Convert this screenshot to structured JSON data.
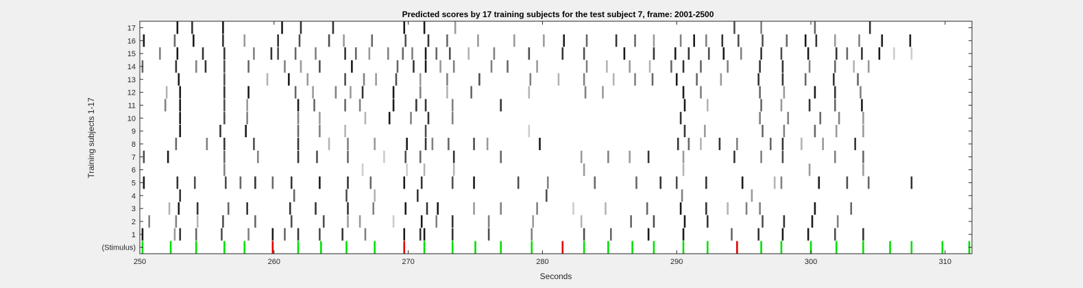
{
  "chart_data": {
    "type": "heatmap",
    "title": "Predicted scores by 17 training subjects for the test subject 7, frame: 2001-2500",
    "xlabel": "Seconds",
    "ylabel": "Training subjects 1-17",
    "xlim": [
      250,
      312
    ],
    "x_ticks": [
      250,
      260,
      270,
      280,
      290,
      300,
      310
    ],
    "y_tick_labels": [
      "(Stimulus)",
      "1",
      "2",
      "3",
      "4",
      "5",
      "6",
      "7",
      "8",
      "9",
      "10",
      "11",
      "12",
      "13",
      "14",
      "15",
      "16",
      "17"
    ],
    "grid": false,
    "colors": {
      "stimulus_normal": "#00e000",
      "stimulus_odd": "#e00000",
      "axes": "#000000",
      "background": "#f0f0f0"
    },
    "stimulus": {
      "normal_times": [
        250.2,
        252.3,
        254.2,
        256.3,
        257.8,
        261.8,
        263.5,
        265.4,
        267.5,
        271.2,
        273.3,
        275.0,
        276.9,
        279.2,
        283.1,
        284.9,
        286.7,
        288.3,
        290.5,
        292.3,
        296.3,
        297.8,
        300.0,
        301.9,
        303.9,
        305.9,
        307.5,
        309.8,
        311.8
      ],
      "odd_times": [
        259.9,
        269.7,
        281.5,
        294.5
      ]
    },
    "series": [
      {
        "row": 1,
        "times": [
          250.2,
          252.6,
          253.0,
          254.2,
          256.1,
          258.1,
          259.9,
          260.8,
          261.8,
          263.4,
          265.1,
          266.8,
          269.7,
          270.9,
          271.2,
          273.3,
          276.0,
          279.2,
          283.1,
          285.1,
          287.9,
          290.5,
          294.1,
          296.1,
          297.9,
          299.8,
          301.8,
          303.9
        ],
        "intensities": [
          0.9,
          0.4,
          0.8,
          0.6,
          0.7,
          0.5,
          0.9,
          0.6,
          0.8,
          0.7,
          0.8,
          0.5,
          0.9,
          0.8,
          0.9,
          0.8,
          0.7,
          0.5,
          0.7,
          0.6,
          0.9,
          0.9,
          0.6,
          0.8,
          0.9,
          0.9,
          0.7,
          0.8
        ]
      },
      {
        "row": 2,
        "times": [
          250.7,
          252.7,
          254.3,
          256.2,
          258.6,
          261.3,
          263.7,
          265.5,
          266.4,
          268.9,
          271.0,
          272.1,
          273.3,
          276.0,
          279.3,
          282.9,
          286.6,
          288.3,
          290.6,
          292.3,
          296.4,
          298.0,
          300.1,
          302.0
        ],
        "intensities": [
          0.5,
          0.5,
          0.3,
          0.7,
          0.6,
          0.7,
          0.7,
          0.4,
          0.4,
          0.2,
          0.9,
          0.5,
          0.8,
          0.5,
          0.4,
          0.3,
          0.6,
          0.7,
          0.9,
          0.8,
          0.7,
          0.8,
          0.9,
          0.5
        ]
      },
      {
        "row": 3,
        "times": [
          252.2,
          252.9,
          254.3,
          256.6,
          258.0,
          261.2,
          263.1,
          265.5,
          267.4,
          269.8,
          271.4,
          272.2,
          274.9,
          276.9,
          279.6,
          282.3,
          284.7,
          287.8,
          290.3,
          292.2,
          293.8,
          295.2,
          296.2,
          300.3,
          303.0
        ],
        "intensities": [
          0.3,
          0.9,
          0.8,
          0.6,
          0.8,
          0.8,
          0.8,
          0.8,
          0.5,
          0.9,
          0.8,
          0.9,
          0.4,
          0.5,
          0.5,
          0.2,
          0.3,
          0.6,
          0.9,
          0.8,
          0.3,
          0.5,
          0.5,
          0.9,
          0.6
        ]
      },
      {
        "row": 4,
        "times": [
          253.0,
          261.5,
          265.4,
          267.5,
          270.7,
          280.3,
          290.4,
          295.6
        ],
        "intensities": [
          0.8,
          0.6,
          0.7,
          0.3,
          0.8,
          0.7,
          0.5,
          0.4
        ]
      },
      {
        "row": 5,
        "times": [
          250.3,
          252.8,
          254.1,
          256.4,
          257.5,
          258.6,
          259.9,
          261.3,
          263.4,
          265.5,
          267.2,
          269.7,
          271.0,
          273.3,
          274.9,
          278.2,
          280.4,
          283.9,
          287.0,
          288.8,
          290.0,
          292.2,
          294.9,
          297.3,
          297.8,
          300.6,
          302.7,
          304.3,
          307.5
        ],
        "intensities": [
          0.9,
          0.8,
          0.7,
          0.7,
          0.6,
          0.8,
          0.6,
          0.8,
          0.9,
          0.8,
          0.6,
          0.9,
          0.8,
          0.7,
          0.9,
          0.7,
          0.5,
          0.6,
          0.6,
          0.8,
          0.7,
          0.8,
          0.9,
          0.3,
          0.5,
          0.9,
          0.7,
          0.6,
          0.8
        ]
      },
      {
        "row": 6,
        "times": [
          256.3,
          266.6,
          269.9,
          271.2,
          273.4,
          283.1,
          290.5,
          299.9,
          303.9
        ],
        "intensities": [
          0.5,
          0.2,
          0.2,
          0.3,
          0.3,
          0.4,
          0.3,
          0.4,
          0.4
        ]
      },
      {
        "row": 7,
        "times": [
          250.3,
          252.1,
          256.3,
          258.8,
          261.8,
          263.2,
          265.5,
          268.2,
          269.8,
          270.9,
          273.4,
          276.9,
          282.9,
          284.9,
          286.5,
          287.9,
          290.5,
          294.3,
          296.3,
          297.9,
          301.8,
          303.9
        ],
        "intensities": [
          0.7,
          0.9,
          0.6,
          0.5,
          0.8,
          0.7,
          0.6,
          0.2,
          0.7,
          0.6,
          0.8,
          0.6,
          0.4,
          0.5,
          0.4,
          0.8,
          0.4,
          0.8,
          0.5,
          0.7,
          0.5,
          0.6
        ]
      },
      {
        "row": 8,
        "times": [
          252.7,
          255.0,
          256.3,
          258.5,
          261.8,
          264.1,
          265.5,
          267.5,
          269.9,
          271.3,
          271.8,
          273.0,
          274.9,
          275.9,
          279.8,
          290.1,
          290.9,
          291.8,
          293.2,
          294.5,
          297.0,
          297.9,
          299.3,
          300.9,
          303.3
        ],
        "intensities": [
          0.6,
          0.5,
          0.8,
          0.7,
          0.8,
          0.3,
          0.5,
          0.4,
          0.9,
          0.8,
          0.5,
          0.6,
          0.7,
          0.4,
          0.9,
          0.8,
          0.6,
          0.3,
          0.8,
          0.5,
          0.6,
          0.8,
          0.3,
          0.4,
          0.8
        ]
      },
      {
        "row": 9,
        "times": [
          253.0,
          256.0,
          257.9,
          261.8,
          263.4,
          265.3,
          271.3,
          279.0,
          290.6,
          292.1,
          296.4,
          298.0,
          300.3,
          301.9,
          303.9
        ],
        "intensities": [
          0.9,
          0.8,
          0.9,
          0.6,
          0.5,
          0.3,
          0.7,
          0.2,
          0.8,
          0.4,
          0.6,
          0.5,
          0.6,
          0.4,
          0.4
        ]
      },
      {
        "row": 10,
        "times": [
          253.0,
          256.3,
          258.0,
          261.8,
          263.4,
          266.8,
          268.6,
          270.2,
          271.5,
          273.3,
          290.3,
          296.2,
          298.3,
          300.7,
          302.1,
          303.9
        ],
        "intensities": [
          0.9,
          0.7,
          0.5,
          0.5,
          0.4,
          0.3,
          0.9,
          0.5,
          0.8,
          0.5,
          0.8,
          0.5,
          0.5,
          0.6,
          0.5,
          0.4
        ]
      },
      {
        "row": 11,
        "times": [
          251.9,
          253.0,
          256.3,
          258.0,
          261.8,
          263.0,
          265.3,
          266.4,
          268.9,
          270.6,
          271.3,
          273.3,
          276.9,
          290.6,
          292.3,
          296.3,
          297.8,
          299.9,
          301.8,
          303.8
        ],
        "intensities": [
          0.5,
          0.9,
          0.7,
          0.4,
          0.9,
          0.6,
          0.6,
          0.5,
          0.9,
          0.8,
          0.8,
          0.5,
          0.8,
          0.9,
          0.3,
          0.6,
          0.4,
          0.8,
          0.6,
          0.9
        ]
      },
      {
        "row": 12,
        "times": [
          252.0,
          253.0,
          256.3,
          258.1,
          261.6,
          262.9,
          264.6,
          265.7,
          266.6,
          268.9,
          270.9,
          272.9,
          274.7,
          279.0,
          283.2,
          284.5,
          290.5,
          291.8,
          296.2,
          298.0,
          300.3,
          301.8,
          303.7
        ],
        "intensities": [
          0.3,
          0.9,
          0.8,
          0.9,
          0.6,
          0.4,
          0.5,
          0.4,
          0.8,
          0.9,
          0.5,
          0.3,
          0.6,
          0.3,
          0.5,
          0.4,
          0.9,
          0.5,
          0.6,
          0.4,
          0.9,
          0.8,
          0.5
        ]
      },
      {
        "row": 13,
        "times": [
          252.9,
          256.3,
          259.5,
          261.1,
          262.5,
          265.3,
          266.7,
          267.6,
          269.1,
          270.9,
          272.9,
          275.3,
          279.1,
          281.2,
          283.1,
          285.3,
          286.9,
          288.2,
          290.0,
          291.5,
          293.3,
          296.1,
          297.9,
          299.6,
          301.7,
          303.5
        ],
        "intensities": [
          0.9,
          0.7,
          0.3,
          0.9,
          0.4,
          0.7,
          0.5,
          0.4,
          0.7,
          0.4,
          0.5,
          0.7,
          0.5,
          0.3,
          0.5,
          0.3,
          0.5,
          0.6,
          0.9,
          0.6,
          0.4,
          0.8,
          0.8,
          0.6,
          0.8,
          0.6
        ]
      },
      {
        "row": 14,
        "times": [
          250.2,
          252.7,
          254.2,
          254.9,
          256.3,
          258.1,
          260.8,
          262.0,
          263.4,
          265.8,
          269.2,
          270.4,
          271.3,
          272.4,
          273.4,
          276.2,
          277.4,
          279.6,
          283.3,
          284.8,
          286.5,
          288.0,
          289.6,
          290.5,
          291.8,
          293.8,
          296.2,
          297.9,
          299.9,
          301.8,
          303.2,
          304.3
        ],
        "intensities": [
          0.6,
          0.8,
          0.5,
          0.8,
          0.7,
          0.6,
          0.5,
          0.4,
          0.7,
          0.9,
          0.6,
          0.8,
          0.9,
          0.4,
          0.5,
          0.5,
          0.6,
          0.4,
          0.5,
          0.3,
          0.4,
          0.3,
          0.6,
          0.8,
          0.6,
          0.5,
          0.8,
          0.8,
          0.5,
          0.6,
          0.3,
          0.4
        ]
      },
      {
        "row": 15,
        "times": [
          251.5,
          252.8,
          254.7,
          256.3,
          258.5,
          259.8,
          260.3,
          261.6,
          263.1,
          265.3,
          266.1,
          267.1,
          268.5,
          269.6,
          270.3,
          271.3,
          272.1,
          273.1,
          274.5,
          276.4,
          279.0,
          281.5,
          283.1,
          286.1,
          288.3,
          289.9,
          290.9,
          292.4,
          293.5,
          294.8,
          296.3,
          297.8,
          299.8,
          301.9,
          302.7,
          303.8,
          305.1,
          306.2,
          307.5
        ],
        "intensities": [
          0.5,
          0.9,
          0.8,
          0.8,
          0.5,
          0.8,
          0.7,
          0.6,
          0.5,
          0.8,
          0.6,
          0.4,
          0.5,
          0.6,
          0.5,
          0.9,
          0.6,
          0.7,
          0.3,
          0.5,
          0.7,
          0.8,
          0.7,
          0.9,
          0.8,
          0.9,
          0.8,
          0.7,
          0.9,
          0.5,
          0.8,
          0.7,
          0.9,
          0.8,
          0.6,
          0.8,
          0.9,
          0.2,
          0.2
        ]
      },
      {
        "row": 16,
        "times": [
          250.3,
          252.6,
          254.0,
          256.2,
          257.8,
          260.3,
          261.9,
          264.1,
          265.2,
          267.3,
          269.8,
          271.5,
          272.9,
          275.2,
          277.9,
          280.1,
          281.6,
          283.3,
          285.5,
          286.9,
          288.3,
          290.3,
          291.3,
          292.2,
          293.4,
          294.6,
          296.4,
          298.2,
          299.6,
          300.4,
          301.8,
          303.6,
          305.3,
          307.4
        ],
        "intensities": [
          0.9,
          0.6,
          0.9,
          0.8,
          0.4,
          0.8,
          0.7,
          0.7,
          0.4,
          0.6,
          0.7,
          0.8,
          0.6,
          0.4,
          0.4,
          0.4,
          0.9,
          0.6,
          0.8,
          0.6,
          0.4,
          0.5,
          0.9,
          0.5,
          0.8,
          0.7,
          0.7,
          0.6,
          0.9,
          0.8,
          0.4,
          0.5,
          0.9,
          0.9
        ]
      },
      {
        "row": 17,
        "times": [
          252.8,
          253.9,
          256.2,
          260.6,
          262.0,
          264.4,
          269.7,
          271.2,
          273.5,
          294.3,
          296.3,
          300.3,
          304.4
        ],
        "intensities": [
          0.9,
          0.8,
          0.9,
          0.9,
          0.8,
          0.8,
          0.9,
          0.9,
          0.4,
          0.7,
          0.5,
          0.6,
          0.8
        ]
      }
    ]
  }
}
